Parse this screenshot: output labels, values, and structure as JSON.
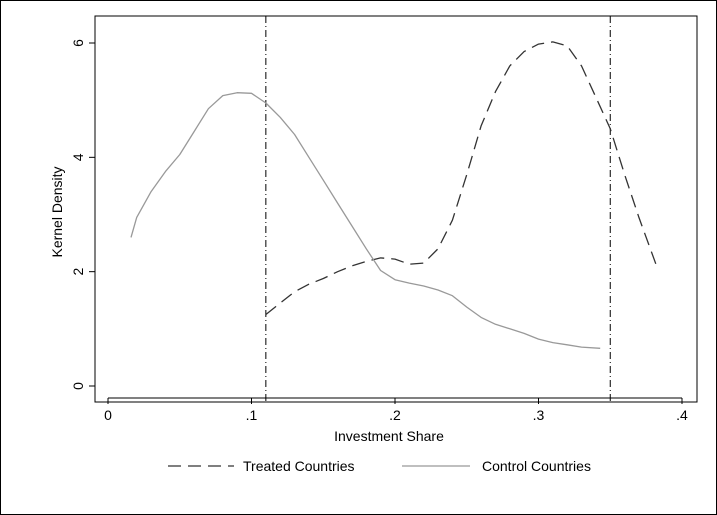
{
  "chart_data": {
    "type": "line",
    "xlabel": "Investment Share",
    "ylabel": "Kernel Density",
    "xlim": [
      0,
      0.4
    ],
    "ylim": [
      0,
      6
    ],
    "x_ticks": [
      0,
      0.1,
      0.2,
      0.3,
      0.4
    ],
    "x_tick_labels": [
      "0",
      ".1",
      ".2",
      ".3",
      ".4"
    ],
    "y_ticks": [
      0,
      2,
      4,
      6
    ],
    "y_tick_labels": [
      "0",
      "2",
      "4",
      "6"
    ],
    "grid": false,
    "legend_position": "bottom",
    "vertical_reference_lines": [
      0.11,
      0.35
    ],
    "series": [
      {
        "name": "Treated Countries",
        "style": "dashed",
        "color": "#333333",
        "x": [
          0.11,
          0.12,
          0.13,
          0.14,
          0.15,
          0.16,
          0.17,
          0.18,
          0.19,
          0.2,
          0.21,
          0.22,
          0.23,
          0.24,
          0.25,
          0.26,
          0.27,
          0.28,
          0.29,
          0.3,
          0.31,
          0.32,
          0.33,
          0.34,
          0.35,
          0.36,
          0.37,
          0.383
        ],
        "y": [
          1.25,
          1.45,
          1.65,
          1.78,
          1.88,
          2.0,
          2.1,
          2.18,
          2.24,
          2.22,
          2.13,
          2.15,
          2.4,
          2.9,
          3.7,
          4.55,
          5.15,
          5.6,
          5.85,
          5.98,
          6.02,
          5.95,
          5.6,
          5.05,
          4.5,
          3.7,
          2.95,
          2.05
        ]
      },
      {
        "name": "Control Countries",
        "style": "solid",
        "color": "#999999",
        "x": [
          0.016,
          0.02,
          0.03,
          0.04,
          0.05,
          0.06,
          0.07,
          0.08,
          0.09,
          0.1,
          0.11,
          0.12,
          0.13,
          0.14,
          0.15,
          0.16,
          0.17,
          0.18,
          0.19,
          0.2,
          0.21,
          0.22,
          0.23,
          0.24,
          0.25,
          0.26,
          0.27,
          0.28,
          0.29,
          0.3,
          0.31,
          0.32,
          0.33,
          0.343
        ],
        "y": [
          2.6,
          2.95,
          3.4,
          3.75,
          4.05,
          4.45,
          4.85,
          5.08,
          5.13,
          5.12,
          4.95,
          4.7,
          4.4,
          4.0,
          3.6,
          3.2,
          2.8,
          2.4,
          2.02,
          1.86,
          1.8,
          1.75,
          1.68,
          1.58,
          1.38,
          1.2,
          1.08,
          1.0,
          0.92,
          0.82,
          0.76,
          0.72,
          0.68,
          0.66
        ]
      }
    ]
  }
}
